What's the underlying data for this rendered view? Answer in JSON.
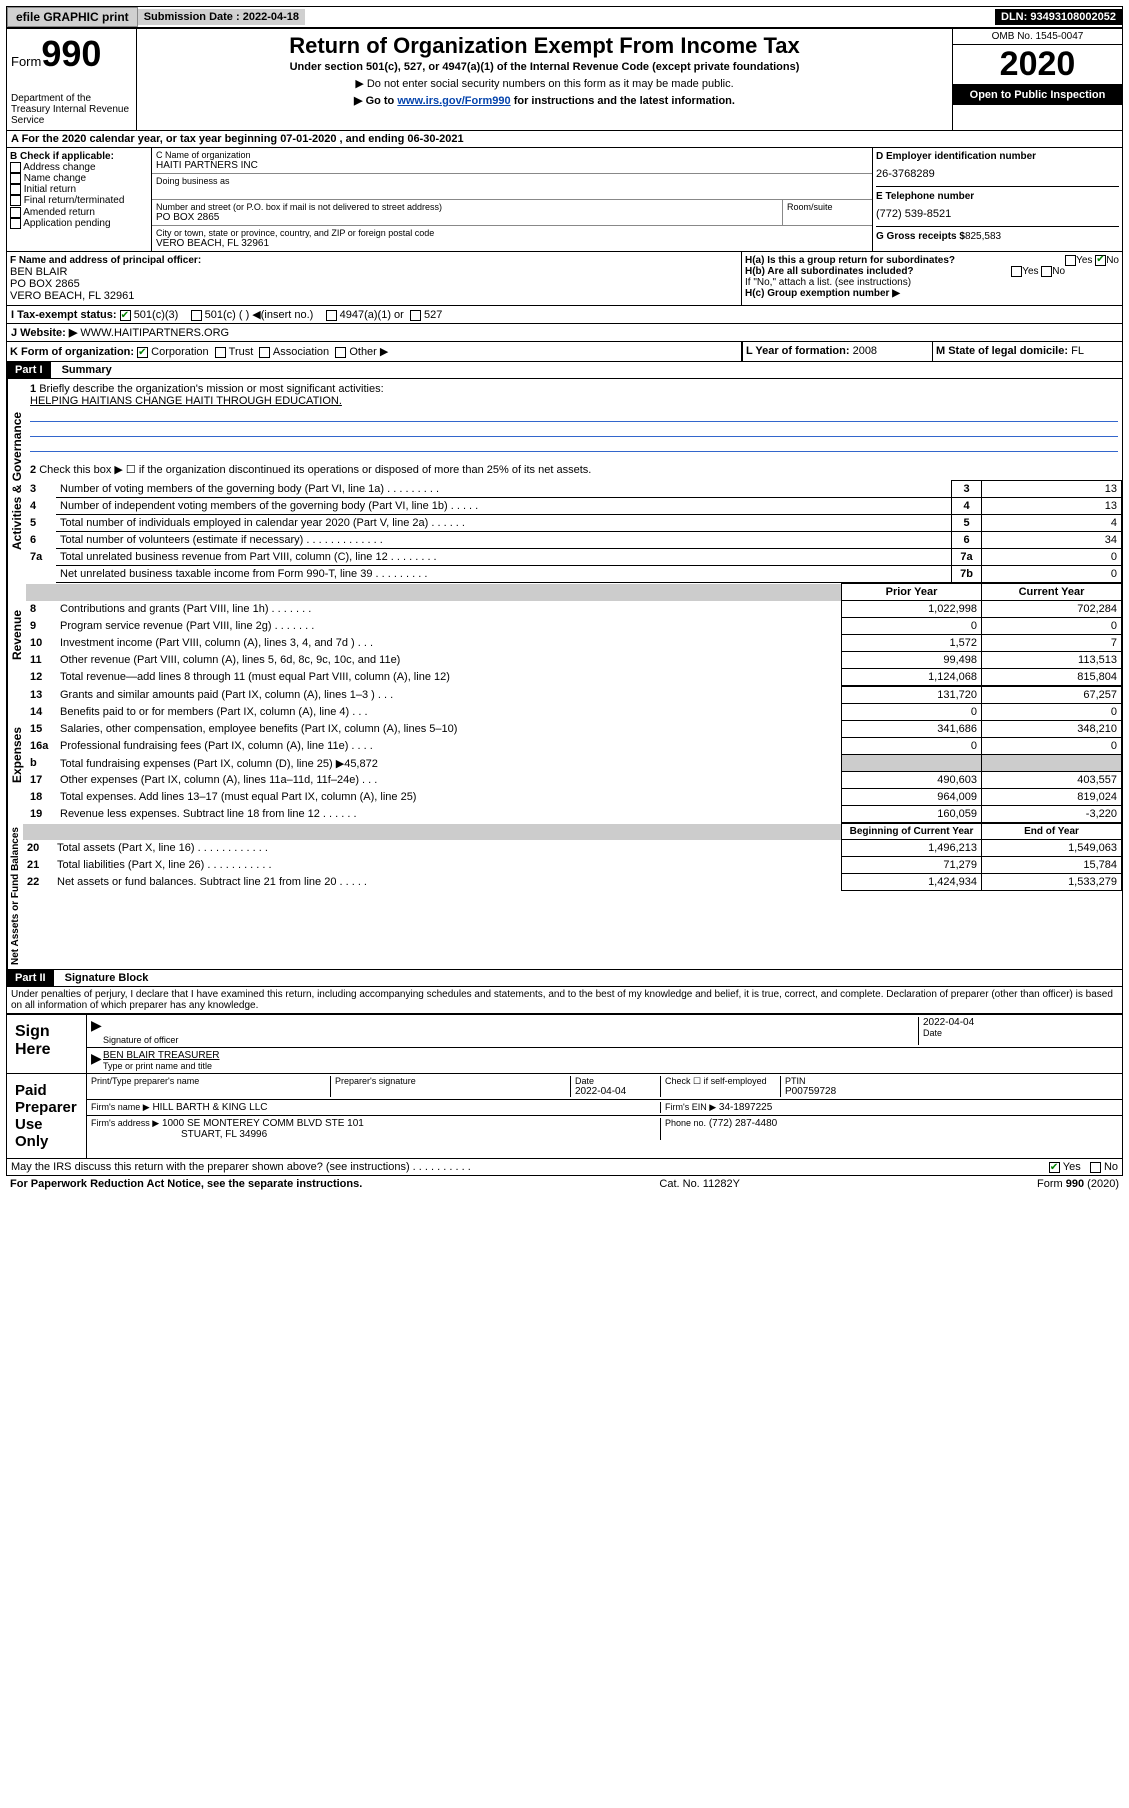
{
  "topbar": {
    "efile": "efile GRAPHIC print",
    "subdate_label": "Submission Date :",
    "subdate": "2022-04-18",
    "dln_label": "DLN:",
    "dln": "93493108002052"
  },
  "head": {
    "form_label": "Form",
    "form_no": "990",
    "dept": "Department of the Treasury Internal Revenue Service",
    "title": "Return of Organization Exempt From Income Tax",
    "subtitle": "Under section 501(c), 527, or 4947(a)(1) of the Internal Revenue Code (except private foundations)",
    "instr1": "▶ Do not enter social security numbers on this form as it may be made public.",
    "instr2_pre": "▶ Go to ",
    "instr2_link": "www.irs.gov/Form990",
    "instr2_post": " for instructions and the latest information.",
    "omb": "OMB No. 1545-0047",
    "year": "2020",
    "open": "Open to Public Inspection"
  },
  "line_a": "A For the 2020 calendar year, or tax year beginning 07-01-2020   , and ending 06-30-2021",
  "sec_b": {
    "header": "B Check if applicable:",
    "addr": "Address change",
    "name": "Name change",
    "initial": "Initial return",
    "final": "Final return/terminated",
    "amended": "Amended return",
    "app": "Application pending",
    "c_label": "C Name of organization",
    "c_name": "HAITI PARTNERS INC",
    "dba_label": "Doing business as",
    "street_label": "Number and street (or P.O. box if mail is not delivered to street address)",
    "street": "PO BOX 2865",
    "room_label": "Room/suite",
    "city_label": "City or town, state or province, country, and ZIP or foreign postal code",
    "city": "VERO BEACH, FL  32961",
    "d_label": "D Employer identification number",
    "d_val": "26-3768289",
    "e_label": "E Telephone number",
    "e_val": "(772) 539-8521",
    "g_label": "G Gross receipts $",
    "g_val": "825,583"
  },
  "sec_f": {
    "label": "F  Name and address of principal officer:",
    "name": "BEN BLAIR",
    "street": "PO BOX 2865",
    "city": "VERO BEACH, FL  32961",
    "ha": "H(a)  Is this a group return for subordinates?",
    "hb": "H(b)  Are all subordinates included?",
    "hnote": "If \"No,\" attach a list. (see instructions)",
    "hc": "H(c)  Group exemption number ▶",
    "yes": "Yes",
    "no": "No"
  },
  "sec_i": {
    "label": "I  Tax-exempt status:",
    "c1": "501(c)(3)",
    "c2": "501(c) (  ) ◀(insert no.)",
    "c3": "4947(a)(1) or",
    "c4": "527"
  },
  "sec_j": {
    "label": "J  Website: ▶",
    "val": "WWW.HAITIPARTNERS.ORG"
  },
  "sec_k": {
    "label": "K Form of organization:",
    "corp": "Corporation",
    "trust": "Trust",
    "assoc": "Association",
    "other": "Other ▶",
    "l_label": "L Year of formation:",
    "l_val": "2008",
    "m_label": "M State of legal domicile:",
    "m_val": "FL"
  },
  "part1": {
    "hdr": "Part I",
    "title": "Summary"
  },
  "summary": {
    "q1": "Briefly describe the organization's mission or most significant activities:",
    "mission": "HELPING HAITIANS CHANGE HAITI THROUGH EDUCATION.",
    "q2": "Check this box ▶ ☐  if the organization discontinued its operations or disposed of more than 25% of its net assets.",
    "rows": [
      {
        "n": "3",
        "t": "Number of voting members of the governing body (Part VI, line 1a)   .   .   .   .   .   .   .   .   .",
        "c": "3",
        "v": "13"
      },
      {
        "n": "4",
        "t": "Number of independent voting members of the governing body (Part VI, line 1b)   .   .   .   .   .",
        "c": "4",
        "v": "13"
      },
      {
        "n": "5",
        "t": "Total number of individuals employed in calendar year 2020 (Part V, line 2a)   .   .   .   .   .   .",
        "c": "5",
        "v": "4"
      },
      {
        "n": "6",
        "t": "Total number of volunteers (estimate if necessary)   .   .   .   .   .   .   .   .   .   .   .   .   .",
        "c": "6",
        "v": "34"
      },
      {
        "n": "7a",
        "t": "Total unrelated business revenue from Part VIII, column (C), line 12   .   .   .   .   .   .   .   .",
        "c": "7a",
        "v": "0"
      },
      {
        "n": "",
        "t": "Net unrelated business taxable income from Form 990-T, line 39   .   .   .   .   .   .   .   .   .",
        "c": "7b",
        "v": "0"
      }
    ],
    "prior": "Prior Year",
    "current": "Current Year",
    "rev_rows": [
      {
        "n": "8",
        "t": "Contributions and grants (Part VIII, line 1h)   .   .   .   .   .   .   .",
        "p": "1,022,998",
        "c": "702,284"
      },
      {
        "n": "9",
        "t": "Program service revenue (Part VIII, line 2g)   .   .   .   .   .   .   .",
        "p": "0",
        "c": "0"
      },
      {
        "n": "10",
        "t": "Investment income (Part VIII, column (A), lines 3, 4, and 7d )   .   .   .",
        "p": "1,572",
        "c": "7"
      },
      {
        "n": "11",
        "t": "Other revenue (Part VIII, column (A), lines 5, 6d, 8c, 9c, 10c, and 11e)",
        "p": "99,498",
        "c": "113,513"
      },
      {
        "n": "12",
        "t": "Total revenue—add lines 8 through 11 (must equal Part VIII, column (A), line 12)",
        "p": "1,124,068",
        "c": "815,804"
      }
    ],
    "exp_rows": [
      {
        "n": "13",
        "t": "Grants and similar amounts paid (Part IX, column (A), lines 1–3 )   .   .   .",
        "p": "131,720",
        "c": "67,257"
      },
      {
        "n": "14",
        "t": "Benefits paid to or for members (Part IX, column (A), line 4)   .   .   .",
        "p": "0",
        "c": "0"
      },
      {
        "n": "15",
        "t": "Salaries, other compensation, employee benefits (Part IX, column (A), lines 5–10)",
        "p": "341,686",
        "c": "348,210"
      },
      {
        "n": "16a",
        "t": "Professional fundraising fees (Part IX, column (A), line 11e)   .   .   .   .",
        "p": "0",
        "c": "0"
      },
      {
        "n": "b",
        "t": "Total fundraising expenses (Part IX, column (D), line 25) ▶45,872",
        "p": "",
        "c": "",
        "grey": true
      },
      {
        "n": "17",
        "t": "Other expenses (Part IX, column (A), lines 11a–11d, 11f–24e)   .   .   .",
        "p": "490,603",
        "c": "403,557"
      },
      {
        "n": "18",
        "t": "Total expenses. Add lines 13–17 (must equal Part IX, column (A), line 25)",
        "p": "964,009",
        "c": "819,024"
      },
      {
        "n": "19",
        "t": "Revenue less expenses. Subtract line 18 from line 12   .   .   .   .   .   .",
        "p": "160,059",
        "c": "-3,220"
      }
    ],
    "begin": "Beginning of Current Year",
    "end": "End of Year",
    "net_rows": [
      {
        "n": "20",
        "t": "Total assets (Part X, line 16)   .   .   .   .   .   .   .   .   .   .   .   .",
        "p": "1,496,213",
        "c": "1,549,063"
      },
      {
        "n": "21",
        "t": "Total liabilities (Part X, line 26)   .   .   .   .   .   .   .   .   .   .   .",
        "p": "71,279",
        "c": "15,784"
      },
      {
        "n": "22",
        "t": "Net assets or fund balances. Subtract line 21 from line 20   .   .   .   .   .",
        "p": "1,424,934",
        "c": "1,533,279"
      }
    ]
  },
  "part2": {
    "hdr": "Part II",
    "title": "Signature Block",
    "perjury": "Under penalties of perjury, I declare that I have examined this return, including accompanying schedules and statements, and to the best of my knowledge and belief, it is true, correct, and complete. Declaration of preparer (other than officer) is based on all information of which preparer has any knowledge."
  },
  "sign": {
    "here": "Sign Here",
    "sig_label": "Signature of officer",
    "date_label": "Date",
    "date": "2022-04-04",
    "name": "BEN BLAIR  TREASURER",
    "name_label": "Type or print name and title"
  },
  "paid": {
    "title": "Paid Preparer Use Only",
    "print_label": "Print/Type preparer's name",
    "sig_label": "Preparer's signature",
    "date_label": "Date",
    "date": "2022-04-04",
    "check_label": "Check ☐ if self-employed",
    "ptin_label": "PTIN",
    "ptin": "P00759728",
    "firm_name_label": "Firm's name   ▶",
    "firm_name": "HILL BARTH & KING LLC",
    "firm_ein_label": "Firm's EIN ▶",
    "firm_ein": "34-1897225",
    "firm_addr_label": "Firm's address ▶",
    "firm_addr": "1000 SE MONTEREY COMM BLVD STE 101",
    "firm_city": "STUART, FL  34996",
    "phone_label": "Phone no.",
    "phone": "(772) 287-4480"
  },
  "footer": {
    "discuss": "May the IRS discuss this return with the preparer shown above? (see instructions)   .   .   .   .   .   .   .   .   .   .",
    "yes": "Yes",
    "no": "No",
    "paperwork": "For Paperwork Reduction Act Notice, see the separate instructions.",
    "catno": "Cat. No. 11282Y",
    "formno": "Form 990 (2020)"
  },
  "side_labels": {
    "gov": "Activities & Governance",
    "rev": "Revenue",
    "exp": "Expenses",
    "net": "Net Assets or Fund Balances"
  }
}
